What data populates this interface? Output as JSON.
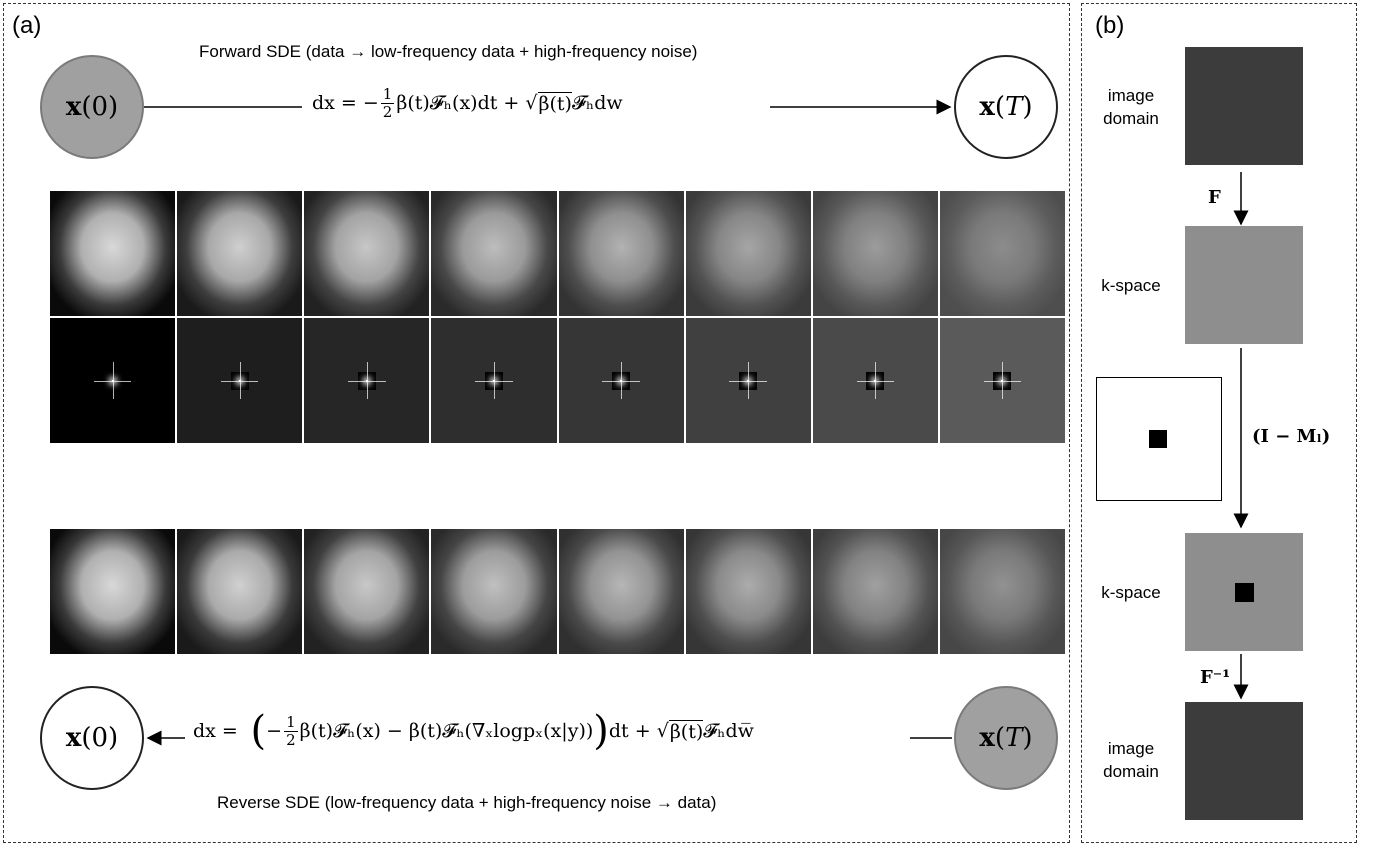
{
  "panel_a": {
    "label": "(a)",
    "forward_caption": "Forward SDE (data → low-frequency data + high-frequency noise)",
    "reverse_caption": "Reverse SDE (low-frequency data + high-frequency noise → data)",
    "node_x0": "0",
    "node_xT": "T",
    "forward_eq": {
      "lhs": "dx = −",
      "frac_num": "1",
      "frac_den": "2",
      "term1": "β(t)𝓕ₕ(x)dt +",
      "sqrt_arg": "β(t)",
      "term2": "𝓕ₕdw"
    },
    "reverse_eq": {
      "lhs": "dx =",
      "neg": "−",
      "frac_num": "1",
      "frac_den": "2",
      "term1": "β(t)𝓕ₕ(x) − β(t)𝓕ₕ(∇ₓlogpₓ(x|y))",
      "dt": "dt +",
      "sqrt_arg": "β(t)",
      "term2": "𝓕ₕdw̅"
    }
  },
  "panel_b": {
    "label": "(b)",
    "row_labels": [
      "image\ndomain",
      "k-space",
      "k-space",
      "image\ndomain"
    ],
    "op_F": "F",
    "op_mask": "(I −  Mₗ)",
    "op_Finv": "F⁻¹"
  }
}
